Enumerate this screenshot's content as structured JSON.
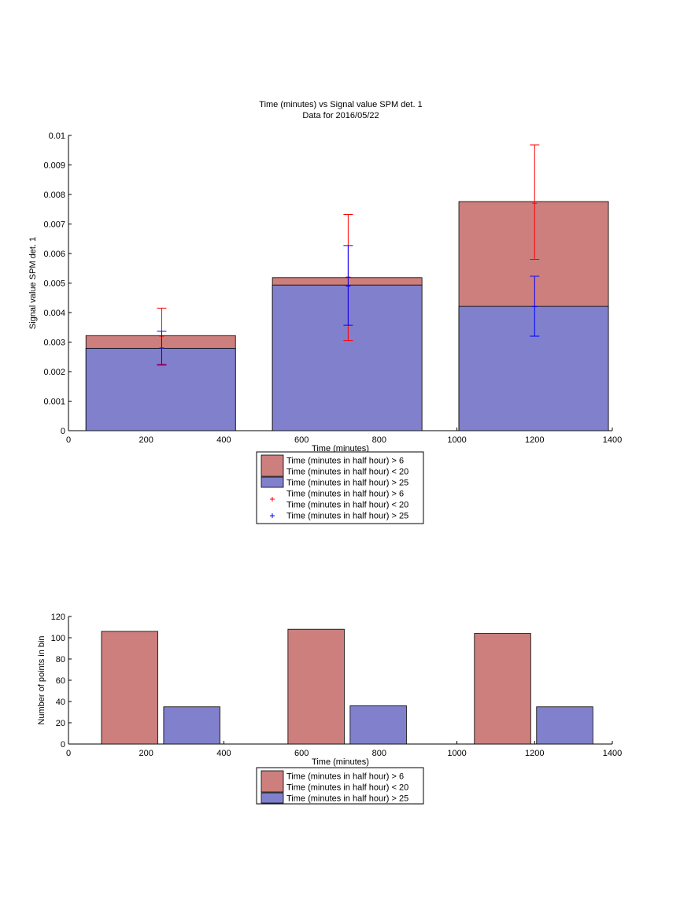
{
  "chart_data": [
    {
      "type": "bar",
      "title": "Time (minutes) vs Signal value SPM det. 1",
      "subtitle": "Data for 2016/05/22",
      "xlabel": "Time (minutes)",
      "ylabel": "Signal value SPM det. 1",
      "xlim": [
        0,
        1400
      ],
      "ylim": [
        0,
        0.01
      ],
      "xticks": [
        "0",
        "200",
        "400",
        "600",
        "800",
        "1000",
        "1200",
        "1400"
      ],
      "yticks": [
        "0",
        "0.001",
        "0.002",
        "0.003",
        "0.004",
        "0.005",
        "0.006",
        "0.007",
        "0.008",
        "0.009",
        "0.01"
      ],
      "bins": [
        {
          "x_start": 45,
          "x_end": 430
        },
        {
          "x_start": 525,
          "x_end": 910
        },
        {
          "x_start": 1005,
          "x_end": 1390
        }
      ],
      "series": [
        {
          "name": "Time (minutes in half hour) > 6\nTime (minutes in half hour) < 20",
          "color": "#cc7f7d",
          "values": [
            0.00322,
            0.00518,
            0.00776
          ],
          "errorbars": {
            "x": [
              240,
              720,
              1200
            ],
            "center": [
              0.0032,
              0.0052,
              0.0077
            ],
            "low": [
              0.00225,
              0.00305,
              0.0058
            ],
            "high": [
              0.00415,
              0.00732,
              0.00968
            ],
            "color": "#ff0000"
          }
        },
        {
          "name": "Time (minutes in half hour) > 25",
          "color": "#8080cc",
          "values": [
            0.00279,
            0.00493,
            0.00421
          ],
          "errorbars": {
            "x": [
              240,
              720,
              1200
            ],
            "center": [
              0.0028,
              0.0049,
              0.0042
            ],
            "low": [
              0.00222,
              0.00357,
              0.0032
            ],
            "high": [
              0.00337,
              0.00627,
              0.00523
            ],
            "color": "#0000ff"
          }
        }
      ],
      "legend": {
        "placement": "below",
        "entries": [
          {
            "kind": "patch",
            "color": "#cc7f7d",
            "lines": [
              "Time (minutes in half hour) > 6",
              "Time (minutes in half hour) < 20"
            ]
          },
          {
            "kind": "patch",
            "color": "#8080cc",
            "lines": [
              "Time (minutes in half hour) > 25"
            ]
          },
          {
            "kind": "marker",
            "color": "#ff0000",
            "lines": [
              "Time (minutes in half hour) > 6",
              "Time (minutes in half hour) < 20"
            ]
          },
          {
            "kind": "marker",
            "color": "#0000ff",
            "lines": [
              "Time (minutes in half hour) > 25"
            ]
          }
        ]
      }
    },
    {
      "type": "bar",
      "title": "",
      "xlabel": "Time (minutes)",
      "ylabel": "Number of points in bin",
      "xlim": [
        0,
        1400
      ],
      "ylim": [
        0,
        120
      ],
      "xticks": [
        "0",
        "200",
        "400",
        "600",
        "800",
        "1000",
        "1200",
        "1400"
      ],
      "yticks": [
        "0",
        "20",
        "40",
        "60",
        "80",
        "100",
        "120"
      ],
      "bars": [
        {
          "series": 0,
          "x_start": 85,
          "x_end": 230,
          "value": 106
        },
        {
          "series": 1,
          "x_start": 245,
          "x_end": 390,
          "value": 35
        },
        {
          "series": 0,
          "x_start": 565,
          "x_end": 710,
          "value": 108
        },
        {
          "series": 1,
          "x_start": 725,
          "x_end": 870,
          "value": 36
        },
        {
          "series": 0,
          "x_start": 1045,
          "x_end": 1190,
          "value": 104
        },
        {
          "series": 1,
          "x_start": 1205,
          "x_end": 1350,
          "value": 35
        }
      ],
      "series": [
        {
          "name": "Time (minutes in half hour) > 6\nTime (minutes in half hour) < 20",
          "color": "#cc7f7d"
        },
        {
          "name": "Time (minutes in half hour) > 25",
          "color": "#8080cc"
        }
      ],
      "legend": {
        "placement": "below",
        "entries": [
          {
            "kind": "patch",
            "color": "#cc7f7d",
            "lines": [
              "Time (minutes in half hour) > 6",
              "Time (minutes in half hour) < 20"
            ]
          },
          {
            "kind": "patch",
            "color": "#8080cc",
            "lines": [
              "Time (minutes in half hour) > 25"
            ]
          }
        ]
      }
    }
  ]
}
